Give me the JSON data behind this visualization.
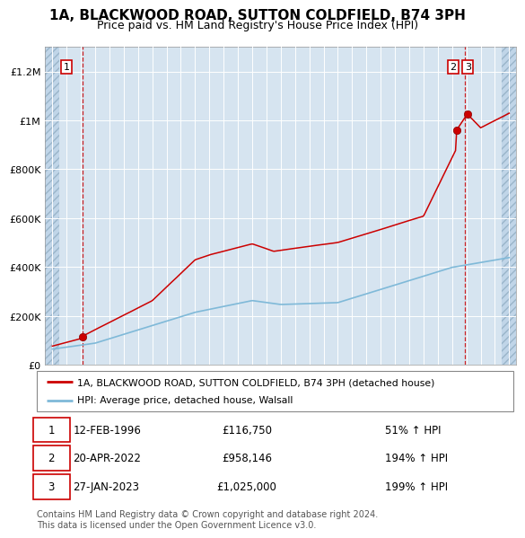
{
  "title_line1": "1A, BLACKWOOD ROAD, SUTTON COLDFIELD, B74 3PH",
  "title_line2": "Price paid vs. HM Land Registry's House Price Index (HPI)",
  "title_fontsize": 11,
  "subtitle_fontsize": 9,
  "bg_color": "#d6e4f0",
  "grid_color": "#ffffff",
  "red_line_color": "#cc0000",
  "blue_line_color": "#7fb9d8",
  "ylim": [
    0,
    1300000
  ],
  "xlim_start": 1993.5,
  "xlim_end": 2026.5,
  "yticks": [
    0,
    200000,
    400000,
    600000,
    800000,
    1000000,
    1200000
  ],
  "ytick_labels": [
    "£0",
    "£200K",
    "£400K",
    "£600K",
    "£800K",
    "£1M",
    "£1.2M"
  ],
  "xticks": [
    1994,
    1995,
    1996,
    1997,
    1998,
    1999,
    2000,
    2001,
    2002,
    2003,
    2004,
    2005,
    2006,
    2007,
    2008,
    2009,
    2010,
    2011,
    2012,
    2013,
    2014,
    2015,
    2016,
    2017,
    2018,
    2019,
    2020,
    2021,
    2022,
    2023,
    2024,
    2025,
    2026
  ],
  "transactions": [
    {
      "date_num": 1996.12,
      "price": 116750,
      "label": "1"
    },
    {
      "date_num": 2022.3,
      "price": 958146,
      "label": "2"
    },
    {
      "date_num": 2023.07,
      "price": 1025000,
      "label": "3"
    }
  ],
  "vline_dates": [
    1996.12,
    2022.87
  ],
  "table_rows": [
    {
      "num": "1",
      "date": "12-FEB-1996",
      "price": "£116,750",
      "change": "51% ↑ HPI"
    },
    {
      "num": "2",
      "date": "20-APR-2022",
      "price": "£958,146",
      "change": "194% ↑ HPI"
    },
    {
      "num": "3",
      "date": "27-JAN-2023",
      "price": "£1,025,000",
      "change": "199% ↑ HPI"
    }
  ],
  "legend_entries": [
    {
      "label": "1A, BLACKWOOD ROAD, SUTTON COLDFIELD, B74 3PH (detached house)",
      "color": "#cc0000"
    },
    {
      "label": "HPI: Average price, detached house, Walsall",
      "color": "#7fb9d8"
    }
  ],
  "footnote": "Contains HM Land Registry data © Crown copyright and database right 2024.\nThis data is licensed under the Open Government Licence v3.0.",
  "footnote_fontsize": 7
}
